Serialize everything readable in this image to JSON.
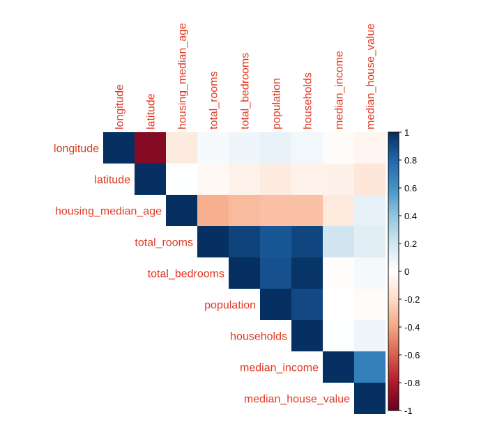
{
  "chart_data": {
    "type": "heatmap",
    "layout": "upper-triangle",
    "variables": [
      "longitude",
      "latitude",
      "housing_median_age",
      "total_rooms",
      "total_bedrooms",
      "population",
      "households",
      "median_income",
      "median_house_value"
    ],
    "matrix": [
      [
        1,
        -0.92,
        -0.11,
        0.04,
        0.07,
        0.1,
        0.06,
        -0.02,
        -0.05
      ],
      [
        null,
        1,
        0.01,
        -0.04,
        -0.07,
        -0.11,
        -0.07,
        -0.08,
        -0.14
      ],
      [
        null,
        null,
        1,
        -0.36,
        -0.32,
        -0.3,
        -0.3,
        -0.12,
        0.11
      ],
      [
        null,
        null,
        null,
        1,
        0.93,
        0.86,
        0.92,
        0.2,
        0.13
      ],
      [
        null,
        null,
        null,
        null,
        1,
        0.88,
        0.98,
        -0.01,
        0.05
      ],
      [
        null,
        null,
        null,
        null,
        null,
        1,
        0.91,
        0.0,
        -0.02
      ],
      [
        null,
        null,
        null,
        null,
        null,
        null,
        1,
        0.01,
        0.07
      ],
      [
        null,
        null,
        null,
        null,
        null,
        null,
        null,
        1,
        0.69
      ],
      [
        null,
        null,
        null,
        null,
        null,
        null,
        null,
        null,
        1
      ]
    ],
    "color_scale": {
      "range": [
        -1,
        1
      ],
      "ticks": [
        "1",
        "0.8",
        "0.6",
        "0.4",
        "0.2",
        "0",
        "-0.2",
        "-0.4",
        "-0.6",
        "-0.8",
        "-1"
      ],
      "stops": [
        "#67001f",
        "#b2182b",
        "#d6604d",
        "#f4a582",
        "#fddbc7",
        "#ffffff",
        "#d1e5f0",
        "#92c5de",
        "#4393c3",
        "#2166ac",
        "#053061"
      ]
    },
    "label_color": "#e03a24",
    "legend": "right"
  }
}
